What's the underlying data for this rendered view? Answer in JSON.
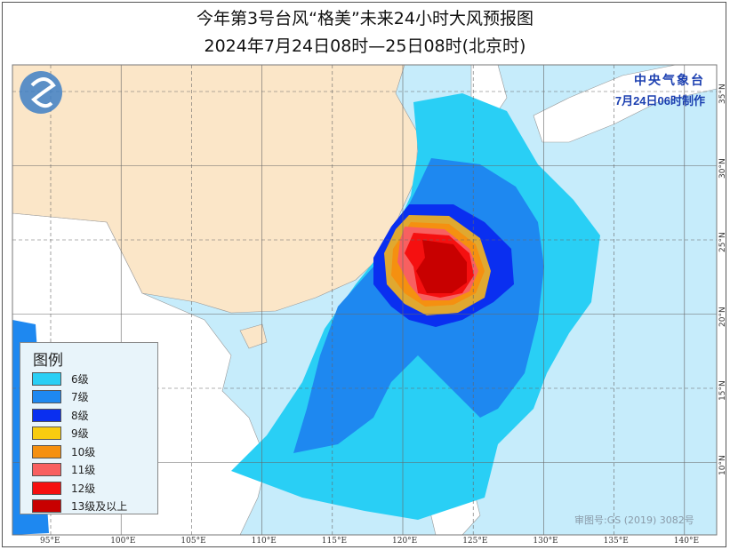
{
  "title": {
    "line1": "今年第3号台风“格美”未来24小时大风预报图",
    "line2": "2024年7月24日08时—25日08时(北京时)"
  },
  "agency": {
    "name": "中央气象台",
    "issued": "7月24日06时制作"
  },
  "logo": {
    "icon": "cma-logo"
  },
  "legend": {
    "title": "图例",
    "items": [
      {
        "label": "6级",
        "color": "#29cff5"
      },
      {
        "label": "7级",
        "color": "#1e88f0"
      },
      {
        "label": "8级",
        "color": "#0a2ff0"
      },
      {
        "label": "9级",
        "color": "#f8cc10"
      },
      {
        "label": "10级",
        "color": "#f59010"
      },
      {
        "label": "11级",
        "color": "#f86060"
      },
      {
        "label": "12级",
        "color": "#f51010"
      },
      {
        "label": "13级及以上",
        "color": "#c80000"
      }
    ]
  },
  "axes": {
    "lon": [
      "95°E",
      "100°E",
      "105°E",
      "110°E",
      "115°E",
      "120°E",
      "125°E",
      "130°E",
      "135°E",
      "140°E"
    ],
    "lat": [
      "35°N",
      "30°N",
      "25°N",
      "20°N",
      "15°N",
      "10°N"
    ]
  },
  "map_colors": {
    "ocean": "#c6ecfb",
    "china": "#fbe6c8",
    "other_land": "#ffffff"
  },
  "approval": "审图号:GS (2019) 3082号"
}
